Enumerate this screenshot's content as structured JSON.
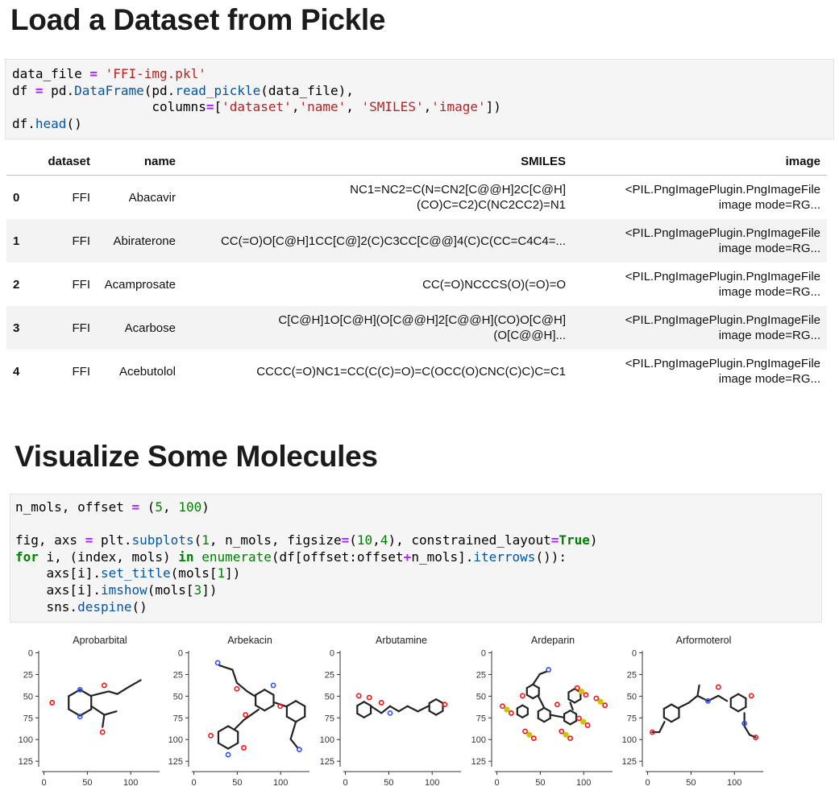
{
  "section1": {
    "title": "Load a Dataset from Pickle",
    "code": [
      [
        {
          "t": "data_file "
        },
        {
          "t": "=",
          "c": "op"
        },
        {
          "t": " "
        },
        {
          "t": "'FFI-img.pkl'",
          "c": "str"
        }
      ],
      [
        {
          "t": "df "
        },
        {
          "t": "=",
          "c": "op"
        },
        {
          "t": " pd."
        },
        {
          "t": "DataFrame",
          "c": "fn"
        },
        {
          "t": "(pd."
        },
        {
          "t": "read_pickle",
          "c": "fn"
        },
        {
          "t": "(data_file),"
        }
      ],
      [
        {
          "t": "                  columns"
        },
        {
          "t": "=",
          "c": "op"
        },
        {
          "t": "["
        },
        {
          "t": "'dataset'",
          "c": "str"
        },
        {
          "t": ","
        },
        {
          "t": "'name'",
          "c": "str"
        },
        {
          "t": ", "
        },
        {
          "t": "'SMILES'",
          "c": "str"
        },
        {
          "t": ","
        },
        {
          "t": "'image'",
          "c": "str"
        },
        {
          "t": "])"
        }
      ],
      [
        {
          "t": "df."
        },
        {
          "t": "head",
          "c": "fn"
        },
        {
          "t": "()"
        }
      ]
    ]
  },
  "table": {
    "columns": [
      "",
      "dataset",
      "name",
      "SMILES",
      "image"
    ],
    "rows": [
      {
        "index": "0",
        "dataset": "FFI",
        "name": "Abacavir",
        "smiles": [
          "NC1=NC2=C(N=CN2[C@@H]2C[C@H]",
          "(CO)C=C2)C(NC2CC2)=N1"
        ],
        "image": [
          "<PIL.PngImagePlugin.PngImageFile",
          "image mode=RG..."
        ]
      },
      {
        "index": "1",
        "dataset": "FFI",
        "name": "Abiraterone",
        "smiles": [
          "CC(=O)O[C@H]1CC[C@]2(C)C3CC[C@@]4(C)C(CC=C4C4=..."
        ],
        "image": [
          "<PIL.PngImagePlugin.PngImageFile",
          "image mode=RG..."
        ]
      },
      {
        "index": "2",
        "dataset": "FFI",
        "name": "Acamprosate",
        "smiles": [
          "CC(=O)NCCCS(O)(=O)=O"
        ],
        "image": [
          "<PIL.PngImagePlugin.PngImageFile",
          "image mode=RG..."
        ]
      },
      {
        "index": "3",
        "dataset": "FFI",
        "name": "Acarbose",
        "smiles": [
          "C[C@H]1O[C@H](O[C@@H]2[C@@H](CO)O[C@H]",
          "(O[C@@H]..."
        ],
        "image": [
          "<PIL.PngImagePlugin.PngImageFile",
          "image mode=RG..."
        ]
      },
      {
        "index": "4",
        "dataset": "FFI",
        "name": "Acebutolol",
        "smiles": [
          "CCCC(=O)NC1=CC(C(C)=O)=C(OCC(O)CNC(C)C)C=C1"
        ],
        "image": [
          "<PIL.PngImagePlugin.PngImageFile",
          "image mode=RG..."
        ]
      }
    ]
  },
  "section2": {
    "title": "Visualize Some Molecules",
    "code": [
      [
        {
          "t": "n_mols, offset "
        },
        {
          "t": "=",
          "c": "op"
        },
        {
          "t": " ("
        },
        {
          "t": "5",
          "c": "num"
        },
        {
          "t": ", "
        },
        {
          "t": "100",
          "c": "num"
        },
        {
          "t": ")"
        }
      ],
      [
        {
          "t": ""
        }
      ],
      [
        {
          "t": "fig, axs "
        },
        {
          "t": "=",
          "c": "op"
        },
        {
          "t": " plt."
        },
        {
          "t": "subplots",
          "c": "fn"
        },
        {
          "t": "("
        },
        {
          "t": "1",
          "c": "num"
        },
        {
          "t": ", n_mols, figsize"
        },
        {
          "t": "=",
          "c": "op"
        },
        {
          "t": "("
        },
        {
          "t": "10",
          "c": "num"
        },
        {
          "t": ","
        },
        {
          "t": "4",
          "c": "num"
        },
        {
          "t": "), constrained_layout"
        },
        {
          "t": "=",
          "c": "op"
        },
        {
          "t": "True",
          "c": "kw"
        },
        {
          "t": ")"
        }
      ],
      [
        {
          "t": "for",
          "c": "kw"
        },
        {
          "t": " i, (index, mols) "
        },
        {
          "t": "in",
          "c": "kw"
        },
        {
          "t": " "
        },
        {
          "t": "enumerate",
          "c": "num"
        },
        {
          "t": "(df[offset:offset"
        },
        {
          "t": "+",
          "c": "op"
        },
        {
          "t": "n_mols]."
        },
        {
          "t": "iterrows",
          "c": "fn"
        },
        {
          "t": "()):"
        }
      ],
      [
        {
          "t": "    axs[i]."
        },
        {
          "t": "set_title",
          "c": "fn"
        },
        {
          "t": "(mols["
        },
        {
          "t": "1",
          "c": "num"
        },
        {
          "t": "])"
        }
      ],
      [
        {
          "t": "    axs[i]."
        },
        {
          "t": "imshow",
          "c": "fn"
        },
        {
          "t": "(mols["
        },
        {
          "t": "3",
          "c": "num"
        },
        {
          "t": "])"
        }
      ],
      [
        {
          "t": "    sns."
        },
        {
          "t": "despine",
          "c": "fn"
        },
        {
          "t": "()"
        }
      ]
    ]
  },
  "molecule_plots": [
    {
      "title": "Aprobarbital"
    },
    {
      "title": "Arbekacin"
    },
    {
      "title": "Arbutamine"
    },
    {
      "title": "Ardeparin"
    },
    {
      "title": "Arformoterol"
    }
  ],
  "axis": {
    "y_ticks": [
      "0",
      "25",
      "50",
      "75",
      "100",
      "125"
    ],
    "x_ticks": [
      "0",
      "50",
      "100"
    ]
  },
  "colors": {
    "string": "#ba2121",
    "operator": "#aa22ff",
    "keyword": "#008000",
    "function": "#0055aa",
    "oxygen": "#ff0d0d",
    "nitrogen": "#3050f8",
    "sulfur": "#c8c800"
  }
}
